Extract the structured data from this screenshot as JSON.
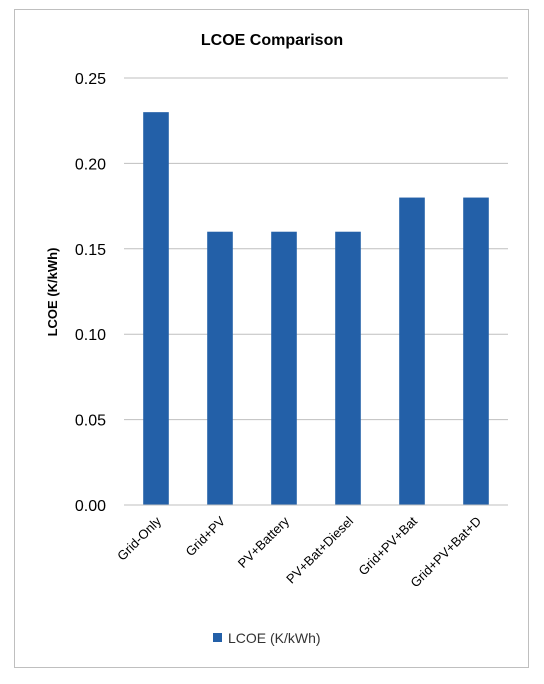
{
  "chart_data": {
    "type": "bar",
    "title": "LCOE Comparison",
    "xlabel": "",
    "ylabel": "LCOE (K/kWh)",
    "categories": [
      "Grid-Only",
      "Grid+PV",
      "PV+Battery",
      "PV+Bat+Diesel",
      "Grid+PV+Bat",
      "Grid+PV+Bat+D"
    ],
    "series": [
      {
        "name": "LCOE (K/kWh)",
        "values": [
          0.23,
          0.16,
          0.16,
          0.16,
          0.18,
          0.18
        ],
        "color": "#2360a8"
      }
    ],
    "ylim": [
      0,
      0.25
    ],
    "yticks": [
      "0.00",
      "0.05",
      "0.10",
      "0.15",
      "0.20",
      "0.25"
    ],
    "grid": true,
    "legend": "bottom"
  }
}
